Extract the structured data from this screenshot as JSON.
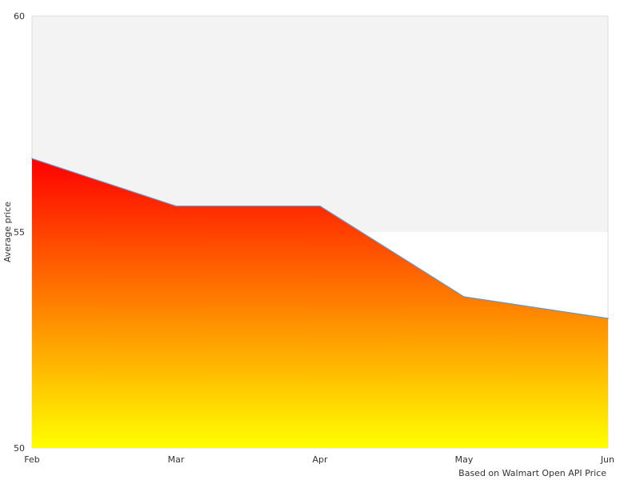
{
  "chart_data": {
    "type": "area",
    "title": "",
    "xlabel": "",
    "ylabel": "Average price",
    "categories": [
      "Feb",
      "Mar",
      "Apr",
      "May",
      "Jun"
    ],
    "series": [
      {
        "values": [
          56.7,
          55.6,
          55.6,
          53.5,
          53.0
        ]
      }
    ],
    "ylim": [
      50,
      60
    ],
    "y_ticks": [
      "50",
      "55",
      "60"
    ],
    "footnote": "Based on Walmart Open API Price",
    "bands": [
      {
        "from": 55,
        "to": 60,
        "color": "#f3f3f3"
      }
    ],
    "colors": {
      "gradient_top": "#ff0000",
      "gradient_bottom": "#ffff00",
      "line": "#5b9bd5",
      "border": "#dddddd"
    },
    "legend": "none",
    "grid": false
  }
}
